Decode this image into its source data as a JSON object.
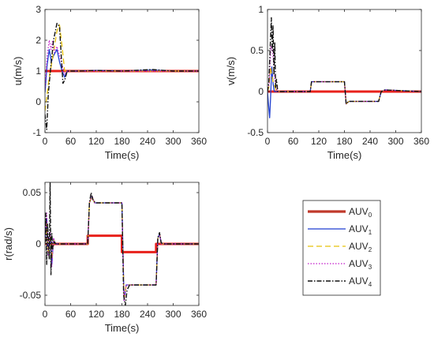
{
  "chart_data": [
    {
      "type": "line",
      "title": "",
      "xlabel": "Time(s)",
      "ylabel": "u(m/s)",
      "xlim": [
        0,
        360
      ],
      "ylim": [
        -1,
        3
      ],
      "xticks": [
        0,
        60,
        120,
        180,
        240,
        300,
        360
      ],
      "yticks": [
        -1,
        0,
        1,
        2,
        3
      ],
      "grid": false,
      "series": [
        {
          "name": "AUV0",
          "x": [
            0,
            360
          ],
          "y": [
            1,
            1
          ]
        },
        {
          "name": "AUV1",
          "x": [
            0,
            5,
            10,
            15,
            20,
            28,
            34,
            40,
            46,
            52,
            80,
            120,
            180,
            250,
            300,
            360
          ],
          "y": [
            0.3,
            1.2,
            1.7,
            1.3,
            1.5,
            1.7,
            1.3,
            1.0,
            0.8,
            1.0,
            1.0,
            1.02,
            1.0,
            1.03,
            1.0,
            1.0
          ]
        },
        {
          "name": "AUV2",
          "x": [
            0,
            10,
            20,
            28,
            34,
            40,
            46,
            52,
            80,
            120,
            180,
            250,
            300,
            360
          ],
          "y": [
            -0.3,
            0.8,
            1.6,
            2.3,
            2.5,
            1.8,
            1.0,
            1.0,
            1.0,
            1.0,
            1.0,
            1.0,
            1.0,
            1.0
          ]
        },
        {
          "name": "AUV3",
          "x": [
            0,
            5,
            10,
            14,
            18,
            22,
            28,
            34,
            40,
            46,
            52,
            80,
            120,
            180,
            250,
            300,
            360
          ],
          "y": [
            0.4,
            1.5,
            2.0,
            1.7,
            2.0,
            1.6,
            1.8,
            1.5,
            1.2,
            0.9,
            1.0,
            1.0,
            1.0,
            1.0,
            1.0,
            1.0,
            1.0
          ]
        },
        {
          "name": "AUV4",
          "x": [
            0,
            4,
            8,
            14,
            20,
            28,
            34,
            38,
            42,
            46,
            52,
            80,
            120,
            180,
            250,
            300,
            360
          ],
          "y": [
            -0.4,
            -0.9,
            0.3,
            1.2,
            2.0,
            2.55,
            2.45,
            1.5,
            0.6,
            0.7,
            1.0,
            1.0,
            1.02,
            1.0,
            1.05,
            1.0,
            1.0
          ]
        }
      ]
    },
    {
      "type": "line",
      "title": "",
      "xlabel": "Time(s)",
      "ylabel": "v(m/s)",
      "xlim": [
        0,
        360
      ],
      "ylim": [
        -0.5,
        1
      ],
      "xticks": [
        0,
        60,
        120,
        180,
        240,
        300,
        360
      ],
      "yticks": [
        -0.5,
        0,
        0.5,
        1
      ],
      "ytick_labels": [
        "-0.5",
        "0",
        "0.5",
        "1"
      ],
      "grid": false,
      "series": [
        {
          "name": "AUV0",
          "x": [
            0,
            360
          ],
          "y": [
            0,
            0
          ]
        },
        {
          "name": "AUV1",
          "x": [
            0,
            3,
            5,
            7,
            10,
            13,
            16,
            20,
            100,
            103,
            110,
            130,
            180,
            184,
            190,
            260,
            266,
            275,
            360
          ],
          "y": [
            0,
            -0.2,
            -0.32,
            -0.1,
            0.3,
            0.1,
            0.0,
            0.0,
            0.0,
            0.12,
            0.12,
            0.12,
            0.12,
            -0.15,
            -0.12,
            -0.12,
            0.0,
            0.02,
            0.0
          ]
        },
        {
          "name": "AUV2",
          "x": [
            0,
            3,
            7,
            10,
            14,
            18,
            22,
            100,
            103,
            110,
            180,
            184,
            190,
            260,
            266,
            275,
            360
          ],
          "y": [
            0,
            0.05,
            0.3,
            0.2,
            0.1,
            0.05,
            0.0,
            0.0,
            0.12,
            0.12,
            0.12,
            -0.15,
            -0.12,
            -0.12,
            0.0,
            0.02,
            0.0
          ]
        },
        {
          "name": "AUV3",
          "x": [
            0,
            4,
            8,
            12,
            16,
            20,
            24,
            100,
            103,
            110,
            180,
            184,
            190,
            260,
            266,
            275,
            360
          ],
          "y": [
            0,
            0.1,
            0.55,
            0.5,
            0.2,
            0.05,
            0.0,
            0.0,
            0.12,
            0.12,
            0.12,
            -0.15,
            -0.12,
            -0.12,
            0.0,
            0.02,
            0.0
          ]
        },
        {
          "name": "AUV4",
          "x": [
            0,
            3,
            6,
            9,
            11,
            13,
            15,
            17,
            19,
            21,
            24,
            100,
            103,
            110,
            180,
            184,
            190,
            260,
            266,
            275,
            360
          ],
          "y": [
            0,
            0.1,
            0.5,
            0.9,
            0.5,
            0.8,
            0.2,
            0.6,
            0.05,
            0.15,
            0.0,
            0.0,
            0.12,
            0.12,
            0.12,
            -0.15,
            -0.12,
            -0.12,
            0.0,
            0.02,
            0.0
          ]
        }
      ]
    },
    {
      "type": "line",
      "title": "",
      "xlabel": "Time(s)",
      "ylabel": "r(rad/s)",
      "xlim": [
        0,
        360
      ],
      "ylim": [
        -0.06,
        0.06
      ],
      "xticks": [
        0,
        60,
        120,
        180,
        240,
        300,
        360
      ],
      "yticks": [
        -0.05,
        0,
        0.05
      ],
      "ytick_labels": [
        "-0.05",
        "0",
        "0.05"
      ],
      "grid": false,
      "series": [
        {
          "name": "AUV0",
          "x": [
            0,
            100,
            100,
            180,
            180,
            260,
            260,
            360
          ],
          "y": [
            0,
            0,
            0.008,
            0.008,
            -0.008,
            -0.008,
            0,
            0
          ]
        },
        {
          "name": "AUV1",
          "x": [
            0,
            4,
            8,
            12,
            16,
            20,
            24,
            100,
            104,
            110,
            116,
            125,
            180,
            185,
            190,
            200,
            260,
            264,
            268,
            272,
            280,
            360
          ],
          "y": [
            0,
            0.025,
            -0.01,
            0.01,
            -0.02,
            0.005,
            0,
            0,
            0.04,
            0.046,
            0.04,
            0.04,
            0.04,
            -0.055,
            -0.04,
            -0.04,
            -0.04,
            0.005,
            0.01,
            0.0,
            0,
            0
          ]
        },
        {
          "name": "AUV2",
          "x": [
            0,
            4,
            8,
            12,
            16,
            20,
            24,
            100,
            104,
            110,
            116,
            125,
            180,
            185,
            190,
            200,
            260,
            264,
            268,
            272,
            280,
            360
          ],
          "y": [
            0,
            0.02,
            -0.01,
            0.008,
            -0.015,
            0.004,
            0,
            0,
            0.04,
            0.046,
            0.04,
            0.04,
            0.04,
            -0.055,
            -0.04,
            -0.04,
            -0.04,
            0.005,
            0.01,
            0.0,
            0,
            0
          ]
        },
        {
          "name": "AUV3",
          "x": [
            0,
            4,
            8,
            12,
            16,
            20,
            24,
            100,
            104,
            110,
            116,
            125,
            180,
            185,
            190,
            200,
            260,
            264,
            268,
            272,
            280,
            360
          ],
          "y": [
            0,
            0.03,
            -0.012,
            0.012,
            -0.022,
            0.006,
            0,
            0,
            0.04,
            0.047,
            0.04,
            0.04,
            0.04,
            -0.056,
            -0.04,
            -0.04,
            -0.04,
            0.005,
            0.01,
            0.0,
            0,
            0
          ]
        },
        {
          "name": "AUV4",
          "x": [
            0,
            2,
            4,
            6,
            8,
            10,
            12,
            14,
            16,
            18,
            22,
            26,
            100,
            104,
            108,
            112,
            118,
            125,
            180,
            184,
            188,
            192,
            198,
            205,
            260,
            264,
            268,
            272,
            280,
            360
          ],
          "y": [
            0,
            0.03,
            -0.02,
            0.02,
            0.005,
            -0.015,
            0.06,
            -0.03,
            0.01,
            -0.005,
            0.002,
            0,
            0,
            0.04,
            0.05,
            0.043,
            0.04,
            0.04,
            0.04,
            -0.05,
            -0.06,
            -0.045,
            -0.04,
            -0.04,
            -0.04,
            0.006,
            0.011,
            0.001,
            0,
            0
          ]
        }
      ]
    }
  ],
  "legend": {
    "placement": "bottom-right",
    "entries": [
      {
        "base": "AUV",
        "sub": "0",
        "color": "#c0392b",
        "dash": "",
        "width": 3.2
      },
      {
        "base": "AUV",
        "sub": "1",
        "color": "#1f3fd1",
        "dash": "",
        "width": 1.2
      },
      {
        "base": "AUV",
        "sub": "2",
        "color": "#e8c20a",
        "dash": "7,4",
        "width": 1.2
      },
      {
        "base": "AUV",
        "sub": "3",
        "color": "#c218c9",
        "dash": "1.5,2",
        "width": 1.2
      },
      {
        "base": "AUV",
        "sub": "4",
        "color": "#111111",
        "dash": "6,2,1.5,2",
        "width": 1.4
      }
    ]
  },
  "series_styles": {
    "AUV0": {
      "color": "#e8211b",
      "dash": "",
      "width": 3
    },
    "AUV1": {
      "color": "#1f3fd1",
      "dash": "",
      "width": 1.3
    },
    "AUV2": {
      "color": "#e8c20a",
      "dash": "7,4",
      "width": 1.3
    },
    "AUV3": {
      "color": "#c218c9",
      "dash": "1.5,2",
      "width": 1.2
    },
    "AUV4": {
      "color": "#111111",
      "dash": "6,2,1.5,2",
      "width": 1.4
    }
  }
}
